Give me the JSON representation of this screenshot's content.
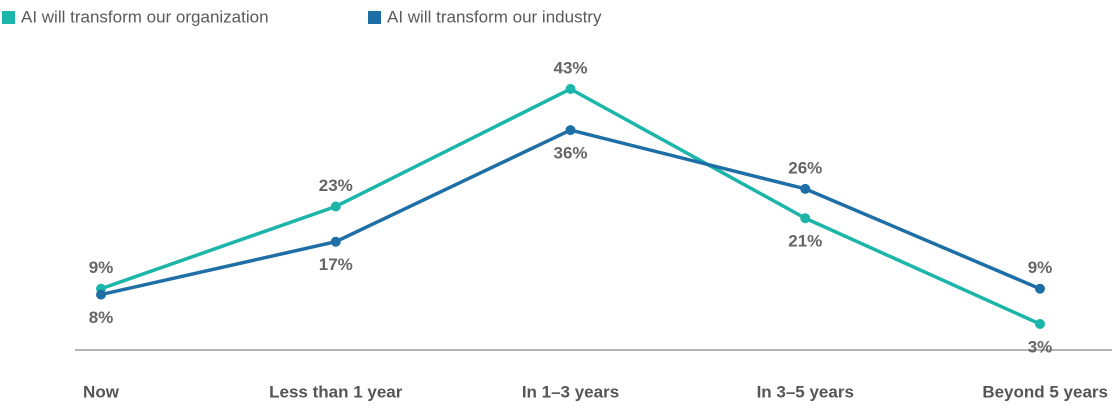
{
  "chart_data": {
    "type": "line",
    "categories": [
      "Now",
      "Less than 1 year",
      "In 1–3 years",
      "In 3–5 years",
      "Beyond 5 years"
    ],
    "series": [
      {
        "name": "AI will transform our organization",
        "color": "#1bb5a9",
        "values": [
          9,
          23,
          43,
          21,
          3
        ],
        "value_labels": [
          "9%",
          "23%",
          "43%",
          "21%",
          "3%"
        ]
      },
      {
        "name": "AI will transform our industry",
        "color": "#1f6fa7",
        "values": [
          8,
          17,
          36,
          26,
          9
        ],
        "value_labels": [
          "8%",
          "17%",
          "36%",
          "26%",
          "9%"
        ]
      }
    ],
    "legend": "top-left"
  }
}
